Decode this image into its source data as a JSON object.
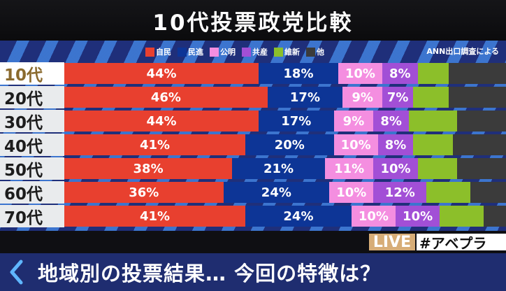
{
  "title": "10代投票政党比較",
  "source_note": "ANN出口調査による",
  "legend": [
    {
      "label": "自民",
      "color": "#e8402f"
    },
    {
      "label": "民進",
      "color": "#0d3596"
    },
    {
      "label": "公明",
      "color": "#f48ee0"
    },
    {
      "label": "共産",
      "color": "#a24fd6"
    },
    {
      "label": "維新",
      "color": "#8cbf2a"
    },
    {
      "label": "他",
      "color": "#3b3b3b"
    }
  ],
  "chart_data": {
    "type": "bar",
    "stacked": true,
    "orientation": "horizontal",
    "title": "10代投票政党比較",
    "categories": [
      "10代",
      "20代",
      "30代",
      "40代",
      "50代",
      "60代",
      "70代"
    ],
    "highlighted_category": "10代",
    "xlim": [
      0,
      100
    ],
    "legend_placement": "top",
    "series": [
      {
        "name": "自民",
        "color": "#e8402f",
        "values": [
          44,
          46,
          44,
          41,
          38,
          36,
          41
        ],
        "labels": [
          "44%",
          "46%",
          "44%",
          "41%",
          "38%",
          "36%",
          "41%"
        ]
      },
      {
        "name": "民進",
        "color": "#0d3596",
        "values": [
          18,
          17,
          17,
          20,
          21,
          24,
          24
        ],
        "labels": [
          "18%",
          "17%",
          "17%",
          "20%",
          "21%",
          "24%",
          "24%"
        ]
      },
      {
        "name": "公明",
        "color": "#f48ee0",
        "values": [
          10,
          9,
          9,
          10,
          11,
          10,
          10
        ],
        "labels": [
          "10%",
          "9%",
          "9%",
          "10%",
          "11%",
          "10%",
          "10%"
        ]
      },
      {
        "name": "共産",
        "color": "#a24fd6",
        "values": [
          8,
          7,
          8,
          8,
          10,
          12,
          10
        ],
        "labels": [
          "8%",
          "7%",
          "8%",
          "8%",
          "10%",
          "12%",
          "10%"
        ]
      },
      {
        "name": "維新",
        "color": "#8cbf2a",
        "values": [
          7,
          8,
          11,
          9,
          9,
          10,
          10
        ],
        "labels": [
          "",
          "",
          "",
          "",
          "",
          "",
          ""
        ]
      },
      {
        "name": "他",
        "color": "#3b3b3b",
        "values": [
          13,
          13,
          11,
          12,
          11,
          8,
          5
        ],
        "labels": [
          "",
          "",
          "",
          "",
          "",
          "",
          ""
        ]
      }
    ]
  },
  "live_label": "LIVE",
  "hashtag": "#アベプラ",
  "headline": "地域別の投票結果… 今回の特徴は？",
  "colors": {
    "title_bg": "#101013",
    "band": "#1f2f7a",
    "bottom_bar": "#1f2d70",
    "live_bg": "#d7ad77"
  },
  "icons": {
    "back": "chevron-left-icon"
  }
}
